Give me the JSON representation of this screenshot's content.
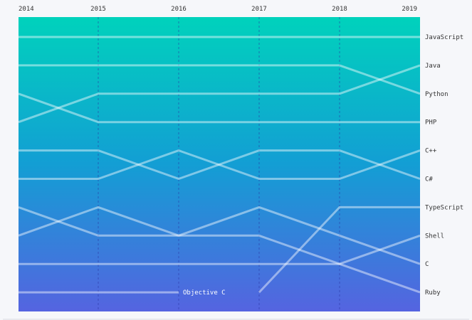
{
  "chart_data": {
    "type": "line",
    "chart_kind": "bump",
    "x": [
      "2014",
      "2015",
      "2016",
      "2017",
      "2018",
      "2019"
    ],
    "y_axis": "rank (1 = top)",
    "ylim": [
      1,
      10
    ],
    "grid": true,
    "legend": "right-side labels",
    "gradient_colors": {
      "top": "#00d2bc",
      "middle": "#139ed4",
      "bottom": "#5564e0"
    },
    "series": [
      {
        "name": "JavaScript",
        "values": [
          1,
          1,
          1,
          1,
          1,
          1
        ]
      },
      {
        "name": "Python",
        "values": [
          2,
          2,
          2,
          2,
          2,
          3
        ]
      },
      {
        "name": "Java",
        "values": [
          4,
          3,
          3,
          3,
          3,
          2
        ]
      },
      {
        "name": "PHP",
        "values": [
          3,
          4,
          4,
          4,
          4,
          4
        ]
      },
      {
        "name": "C#",
        "values": [
          5,
          5,
          6,
          5,
          5,
          6
        ]
      },
      {
        "name": "C++",
        "values": [
          6,
          6,
          5,
          6,
          6,
          5
        ]
      },
      {
        "name": "TypeScript",
        "values": [
          null,
          null,
          null,
          10,
          7,
          7
        ]
      },
      {
        "name": "Shell",
        "values": [
          8,
          7,
          8,
          8,
          9,
          8
        ]
      },
      {
        "name": "C",
        "values": [
          7,
          8,
          8,
          7,
          8,
          9
        ]
      },
      {
        "name": "Ruby",
        "values": [
          9,
          9,
          9,
          9,
          9,
          10
        ]
      },
      {
        "name": "Objective C",
        "values": [
          10,
          10,
          10,
          null,
          null,
          null
        ],
        "inline_label": "Objective C"
      }
    ]
  }
}
